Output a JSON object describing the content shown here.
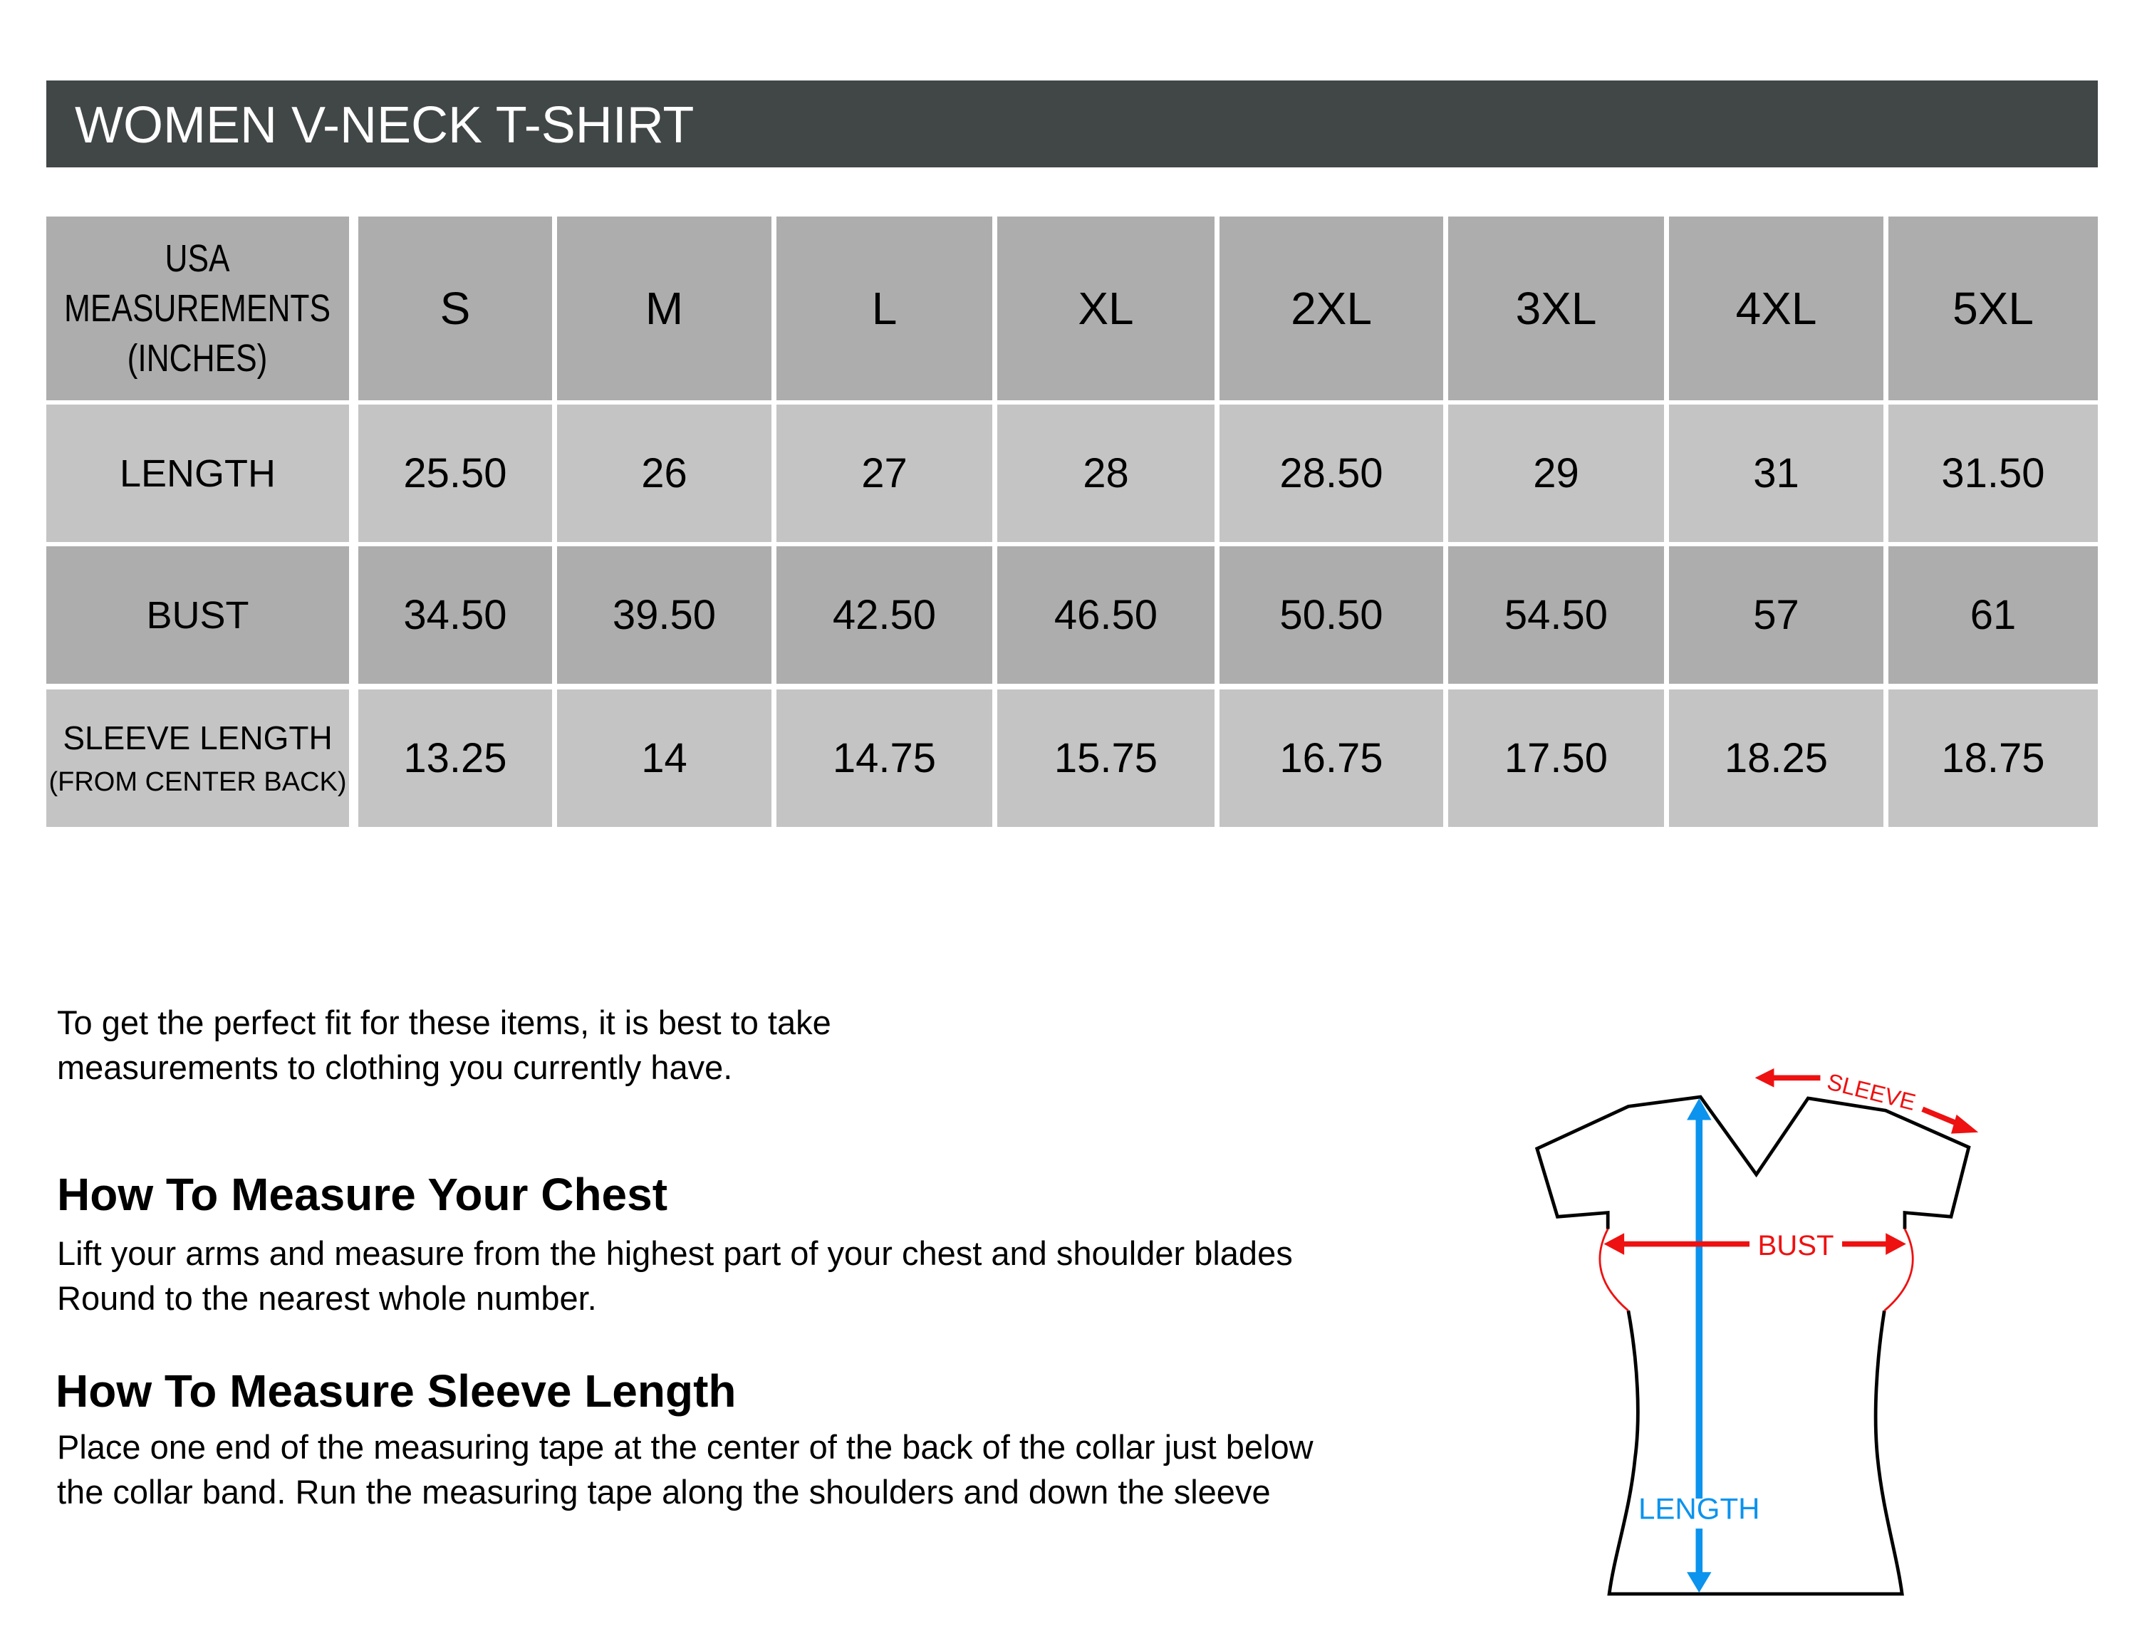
{
  "title": "WOMEN V-NECK T-SHIRT",
  "table": {
    "header_label": [
      "USA",
      "MEASUREMENTS",
      "(INCHES)"
    ],
    "sizes": [
      "S",
      "M",
      "L",
      "XL",
      "2XL",
      "3XL",
      "4XL",
      "5XL"
    ],
    "rows": [
      {
        "label": "LENGTH",
        "values": [
          "25.50",
          "26",
          "27",
          "28",
          "28.50",
          "29",
          "31",
          "31.50"
        ]
      },
      {
        "label": "BUST",
        "values": [
          "34.50",
          "39.50",
          "42.50",
          "46.50",
          "50.50",
          "54.50",
          "57",
          "61"
        ]
      },
      {
        "label": "SLEEVE LENGTH",
        "sublabel": "(FROM CENTER BACK)",
        "values": [
          "13.25",
          "14",
          "14.75",
          "15.75",
          "16.75",
          "17.50",
          "18.25",
          "18.75"
        ]
      }
    ],
    "colors": {
      "header_bar": "#414646",
      "dark_cell": "#adadad",
      "light_cell": "#c4c4c4"
    }
  },
  "intro": [
    "To get the perfect fit for these items, it is best to take",
    "measurements to clothing you currently have."
  ],
  "chest": {
    "heading": "How To Measure Your Chest",
    "body": [
      "Lift your arms and measure from the highest part of your chest and shoulder blades",
      "Round to the nearest whole number."
    ]
  },
  "sleeve": {
    "heading": "How To Measure Sleeve Length",
    "body": [
      "Place one end of the measuring tape at the center of the back of the collar just below",
      "the collar band. Run the measuring tape along the shoulders and down the sleeve"
    ]
  },
  "diagram": {
    "sleeve_label": "SLEEVE",
    "bust_label": "BUST",
    "length_label": "LENGTH",
    "colors": {
      "red": "#ee1111",
      "blue": "#0b93ee"
    }
  }
}
